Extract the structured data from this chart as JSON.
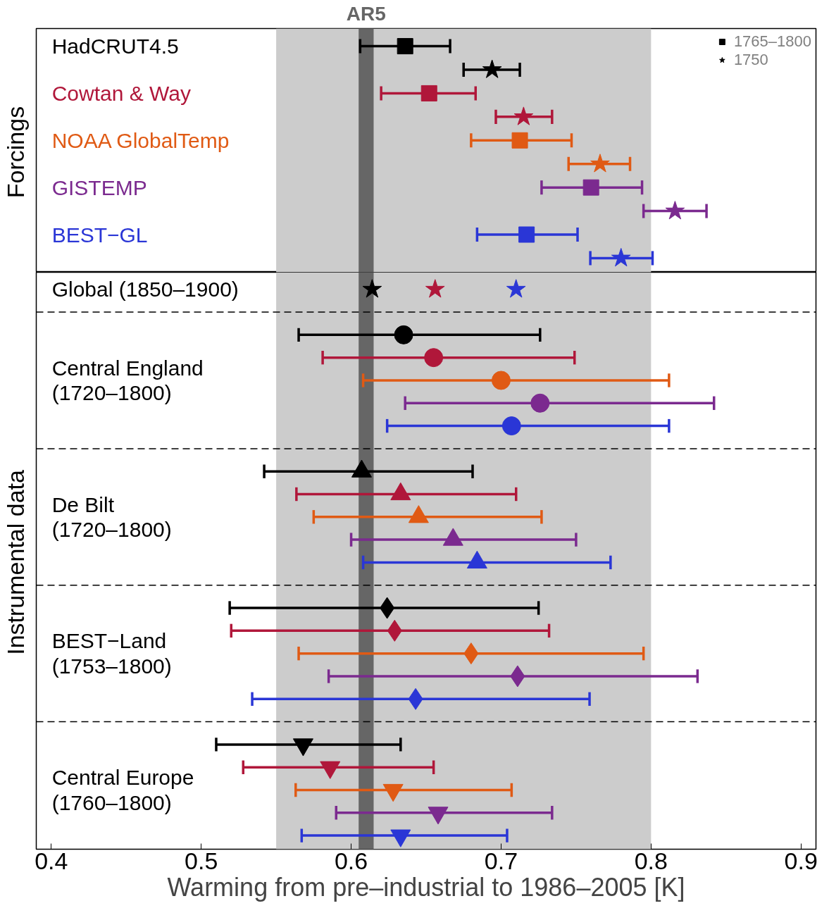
{
  "chart_data": [
    {
      "type": "scatter",
      "orientation": "horizontal",
      "categories": [
        "HadCRUT4.5",
        null,
        "Cowtan & Way",
        null,
        "NOAA GlobalTemp",
        null,
        "GISTEMP",
        null,
        "BEST−GL",
        null
      ],
      "series": [
        {
          "name": "1765–1800",
          "marker": "square",
          "values": [
            0.636,
            null,
            0.652,
            null,
            0.7125,
            null,
            0.76,
            null,
            0.717,
            null
          ],
          "colors": [
            "#000000",
            null,
            "#b0173a",
            null,
            "#e05a14",
            null,
            "#7b2a8f",
            null,
            "#2a36d6",
            null
          ],
          "errors": [
            [
              0.606,
              0.666
            ],
            null,
            [
              0.62,
              0.683
            ],
            null,
            [
              0.68,
              0.747
            ],
            null,
            [
              0.727,
              0.794
            ],
            null,
            [
              0.684,
              0.751
            ],
            null
          ]
        },
        {
          "name": "1750",
          "marker": "star",
          "values": [
            null,
            0.694,
            null,
            0.715,
            null,
            0.766,
            null,
            0.816,
            null,
            0.78
          ],
          "colors": [
            null,
            "#000000",
            null,
            "#b0173a",
            null,
            "#e05a14",
            null,
            "#7b2a8f",
            null,
            "#2a36d6"
          ],
          "errors": [
            null,
            [
              0.675,
              0.7125
            ],
            null,
            [
              0.6965,
              0.734
            ],
            null,
            [
              0.745,
              0.786
            ],
            null,
            [
              0.795,
              0.837
            ],
            null,
            [
              0.7595,
              0.801
            ]
          ]
        }
      ],
      "bands": [
        {
          "axis": "x",
          "from": 0.55,
          "to": 0.8,
          "color": "#cccccc"
        },
        {
          "axis": "x",
          "from": 0.605,
          "to": 0.615,
          "color": "#666666",
          "label": "AR5"
        }
      ],
      "annotations": [
        "Forcings"
      ],
      "xlim": [
        0.39,
        0.91
      ],
      "tick_labels": false,
      "legend": "top right"
    },
    {
      "type": "scatter",
      "orientation": "horizontal",
      "xlabel": "Warming from pre–industrial to 1986–2005 [K]",
      "categories": [
        "Global (1850–1900)",
        null,
        null,
        null,
        "Central England\n(1720–1800)",
        null,
        null,
        null,
        null,
        null,
        "De Bilt\n(1720–1800)",
        null,
        null,
        null,
        null,
        null,
        "BEST−Land\n(1753–1800)",
        null,
        null,
        null,
        null,
        null,
        "Central Europe\n(1760–1800)",
        null,
        null
      ],
      "series": [
        {
          "marker": "star",
          "color": "#000000",
          "values": [
            0.614,
            null,
            null,
            null,
            null,
            null,
            null,
            null,
            null,
            null,
            null,
            null,
            null,
            null,
            null,
            null,
            null,
            null,
            null,
            null,
            null,
            null,
            null,
            null,
            null
          ]
        },
        {
          "marker": "star",
          "color": "#b0173a",
          "values": [
            0.656,
            null,
            null,
            null,
            null,
            null,
            null,
            null,
            null,
            null,
            null,
            null,
            null,
            null,
            null,
            null,
            null,
            null,
            null,
            null,
            null,
            null,
            null,
            null,
            null
          ]
        },
        {
          "marker": "star",
          "color": "#2a36d6",
          "values": [
            0.71,
            null,
            null,
            null,
            null,
            null,
            null,
            null,
            null,
            null,
            null,
            null,
            null,
            null,
            null,
            null,
            null,
            null,
            null,
            null,
            null,
            null,
            null,
            null,
            null
          ]
        },
        {
          "marker": "circle",
          "values": [
            null,
            null,
            0.635,
            0.655,
            0.7,
            0.726,
            0.707,
            null,
            null,
            null,
            null,
            null,
            null,
            null,
            null,
            null,
            null,
            null,
            null,
            null,
            null,
            null,
            null,
            null,
            null
          ],
          "colors": [
            null,
            null,
            "#000000",
            "#b0173a",
            "#e05a14",
            "#7b2a8f",
            "#2a36d6",
            null,
            null,
            null,
            null,
            null,
            null,
            null,
            null,
            null,
            null,
            null,
            null,
            null,
            null,
            null,
            null,
            null,
            null
          ],
          "errors": [
            null,
            null,
            [
              0.565,
              0.726
            ],
            [
              0.581,
              0.749
            ],
            [
              0.608,
              0.812
            ],
            [
              0.636,
              0.842
            ],
            [
              0.624,
              0.812
            ],
            null,
            null,
            null,
            null,
            null,
            null,
            null,
            null,
            null,
            null,
            null,
            null,
            null,
            null,
            null,
            null,
            null,
            null
          ]
        },
        {
          "marker": "triangle",
          "values": [
            null,
            null,
            null,
            null,
            null,
            null,
            null,
            null,
            0.607,
            0.633,
            0.645,
            0.668,
            0.684,
            null,
            null,
            null,
            null,
            null,
            null,
            null,
            null,
            null,
            null,
            null,
            null
          ],
          "colors": [
            null,
            null,
            null,
            null,
            null,
            null,
            null,
            null,
            "#000000",
            "#b0173a",
            "#e05a14",
            "#7b2a8f",
            "#2a36d6",
            null,
            null,
            null,
            null,
            null,
            null,
            null,
            null,
            null,
            null,
            null,
            null
          ],
          "errors": [
            null,
            null,
            null,
            null,
            null,
            null,
            null,
            null,
            [
              0.542,
              0.681
            ],
            [
              0.5635,
              0.71
            ],
            [
              0.575,
              0.727
            ],
            [
              0.6,
              0.75
            ],
            [
              0.608,
              0.773
            ],
            null,
            null,
            null,
            null,
            null,
            null,
            null,
            null,
            null,
            null,
            null,
            null
          ]
        },
        {
          "marker": "diamond",
          "values": [
            null,
            null,
            null,
            null,
            null,
            null,
            null,
            null,
            null,
            null,
            null,
            null,
            null,
            null,
            0.624,
            0.629,
            0.68,
            0.711,
            0.643,
            null,
            null,
            null,
            null,
            null,
            null
          ],
          "colors": [
            null,
            null,
            null,
            null,
            null,
            null,
            null,
            null,
            null,
            null,
            null,
            null,
            null,
            null,
            "#000000",
            "#b0173a",
            "#e05a14",
            "#7b2a8f",
            "#2a36d6",
            null,
            null,
            null,
            null,
            null,
            null
          ],
          "errors": [
            null,
            null,
            null,
            null,
            null,
            null,
            null,
            null,
            null,
            null,
            null,
            null,
            null,
            null,
            [
              0.519,
              0.725
            ],
            [
              0.52,
              0.732
            ],
            [
              0.565,
              0.795
            ],
            [
              0.585,
              0.831
            ],
            [
              0.534,
              0.759
            ],
            null,
            null,
            null,
            null,
            null,
            null
          ]
        },
        {
          "values": [
            null,
            null,
            null,
            null,
            null,
            null,
            null,
            null,
            null,
            null,
            null,
            null,
            null,
            null,
            null,
            null,
            null,
            null,
            null,
            null,
            0.568,
            0.586,
            0.628,
            0.658,
            0.633
          ],
          "colors": [
            null,
            null,
            null,
            null,
            null,
            null,
            null,
            null,
            null,
            null,
            null,
            null,
            null,
            null,
            null,
            null,
            null,
            null,
            null,
            null,
            "#000000",
            "#b0173a",
            "#e05a14",
            "#7b2a8f",
            "#2a36d6"
          ],
          "errors": [
            null,
            null,
            null,
            null,
            null,
            null,
            null,
            null,
            null,
            null,
            null,
            null,
            null,
            null,
            null,
            null,
            null,
            null,
            null,
            null,
            [
              0.51,
              0.633
            ],
            [
              0.528,
              0.655
            ],
            [
              0.563,
              0.707
            ],
            [
              0.59,
              0.734
            ],
            [
              0.567,
              0.704
            ]
          ]
        }
      ],
      "bands": [
        {
          "axis": "x",
          "from": 0.55,
          "to": 0.8,
          "color": "#cccccc"
        },
        {
          "axis": "x",
          "from": 0.605,
          "to": 0.615,
          "color": "#666666"
        }
      ],
      "annotations": [
        "Instrumental data"
      ],
      "xlim": [
        0.39,
        0.91
      ],
      "xticks": [
        0.4,
        0.5,
        0.6,
        0.7,
        0.8,
        0.9
      ],
      "tick_labels": "x",
      "grid": "y"
    }
  ]
}
